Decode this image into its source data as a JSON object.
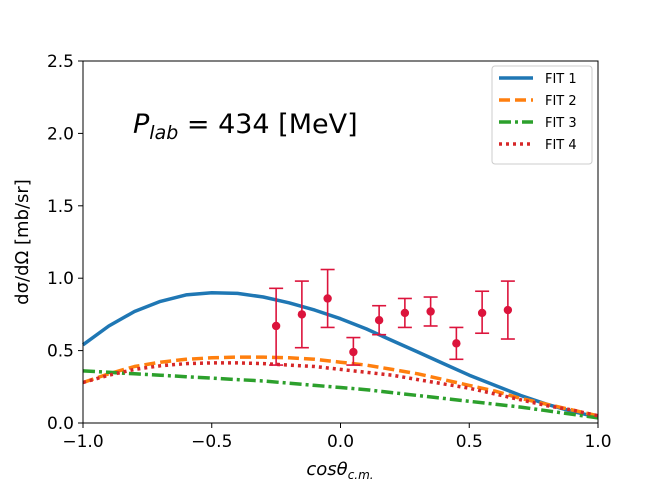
{
  "chart_data": {
    "type": "line",
    "title": "",
    "xlabel": "cosθ_{c.m.}",
    "xlabel_main": "cosθ",
    "xlabel_sub": "c.m.",
    "ylabel": "dσ/dΩ [mb/sr]",
    "xlim": [
      -1.0,
      1.0
    ],
    "ylim": [
      0.0,
      2.5
    ],
    "xticks": [
      -1.0,
      -0.5,
      0.0,
      0.5,
      1.0
    ],
    "xtick_labels": [
      "−1.0",
      "−0.5",
      "0.0",
      "0.5",
      "1.0"
    ],
    "yticks": [
      0.0,
      0.5,
      1.0,
      1.5,
      2.0,
      2.5
    ],
    "ytick_labels": [
      "0.0",
      "0.5",
      "1.0",
      "1.5",
      "2.0",
      "2.5"
    ],
    "annotation": {
      "symbol": "P",
      "subscript": "lab",
      "text": " = 434 [MeV]"
    },
    "legend_position": "top-right",
    "series": [
      {
        "name": "FIT 1",
        "color": "#1f77b4",
        "dash": "solid",
        "x": [
          -1.0,
          -0.9,
          -0.8,
          -0.7,
          -0.6,
          -0.5,
          -0.4,
          -0.3,
          -0.2,
          -0.1,
          0.0,
          0.1,
          0.2,
          0.3,
          0.4,
          0.5,
          0.6,
          0.7,
          0.8,
          0.9,
          1.0
        ],
        "y": [
          0.54,
          0.67,
          0.77,
          0.84,
          0.885,
          0.9,
          0.895,
          0.87,
          0.83,
          0.78,
          0.72,
          0.65,
          0.57,
          0.49,
          0.41,
          0.33,
          0.26,
          0.19,
          0.13,
          0.08,
          0.04
        ]
      },
      {
        "name": "FIT 2",
        "color": "#ff7f0e",
        "dash": "dashed",
        "x": [
          -1.0,
          -0.9,
          -0.8,
          -0.7,
          -0.6,
          -0.5,
          -0.4,
          -0.3,
          -0.2,
          -0.1,
          0.0,
          0.1,
          0.2,
          0.3,
          0.4,
          0.5,
          0.6,
          0.7,
          0.8,
          0.9,
          1.0
        ],
        "y": [
          0.28,
          0.34,
          0.39,
          0.42,
          0.44,
          0.45,
          0.455,
          0.455,
          0.45,
          0.44,
          0.42,
          0.4,
          0.37,
          0.34,
          0.3,
          0.26,
          0.22,
          0.17,
          0.13,
          0.09,
          0.05
        ]
      },
      {
        "name": "FIT 3",
        "color": "#2ca02c",
        "dash": "dashdot",
        "x": [
          -1.0,
          -0.9,
          -0.8,
          -0.7,
          -0.6,
          -0.5,
          -0.4,
          -0.3,
          -0.2,
          -0.1,
          0.0,
          0.1,
          0.2,
          0.3,
          0.4,
          0.5,
          0.6,
          0.7,
          0.8,
          0.9,
          1.0
        ],
        "y": [
          0.36,
          0.35,
          0.34,
          0.33,
          0.32,
          0.31,
          0.3,
          0.29,
          0.275,
          0.26,
          0.245,
          0.23,
          0.21,
          0.19,
          0.17,
          0.15,
          0.13,
          0.11,
          0.085,
          0.06,
          0.035
        ]
      },
      {
        "name": "FIT 4",
        "color": "#d62728",
        "dash": "dotted",
        "x": [
          -1.0,
          -0.9,
          -0.8,
          -0.7,
          -0.6,
          -0.5,
          -0.4,
          -0.3,
          -0.2,
          -0.1,
          0.0,
          0.1,
          0.2,
          0.3,
          0.4,
          0.5,
          0.6,
          0.7,
          0.8,
          0.9,
          1.0
        ],
        "y": [
          0.28,
          0.33,
          0.37,
          0.395,
          0.41,
          0.415,
          0.415,
          0.41,
          0.4,
          0.39,
          0.37,
          0.35,
          0.33,
          0.3,
          0.27,
          0.24,
          0.2,
          0.16,
          0.12,
          0.09,
          0.05
        ]
      }
    ],
    "data_points": {
      "name": "data",
      "color": "#dc143c",
      "x": [
        -0.25,
        -0.15,
        -0.05,
        0.05,
        0.15,
        0.25,
        0.35,
        0.45,
        0.55,
        0.65
      ],
      "y": [
        0.67,
        0.75,
        0.86,
        0.49,
        0.71,
        0.76,
        0.77,
        0.55,
        0.76,
        0.78
      ],
      "err_low": [
        0.27,
        0.23,
        0.2,
        0.09,
        0.1,
        0.1,
        0.1,
        0.11,
        0.14,
        0.2
      ],
      "err_high": [
        0.26,
        0.23,
        0.2,
        0.1,
        0.1,
        0.1,
        0.1,
        0.11,
        0.15,
        0.2
      ]
    }
  }
}
